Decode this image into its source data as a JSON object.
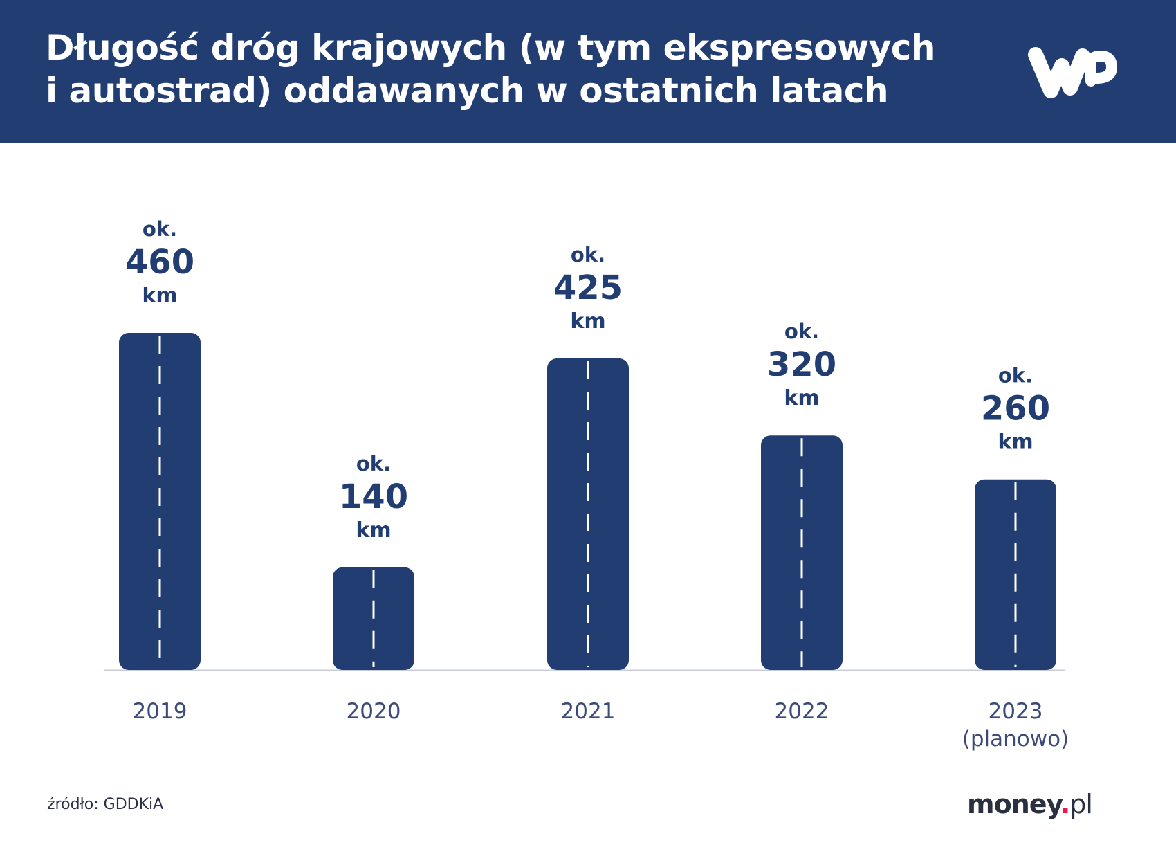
{
  "header": {
    "title": "Długość dróg krajowych (w tym ekspresowych\ni autostrad) oddawanych w ostatnich latach",
    "logo": "WP"
  },
  "colors": {
    "header": "#223d72",
    "bar": "#223d72",
    "dash": "#ffffff",
    "year_label": "#3b4a78"
  },
  "chart_data": {
    "type": "bar",
    "categories": [
      "2019",
      "2020",
      "2021",
      "2022",
      "2023\n(planowo)"
    ],
    "values": [
      460,
      140,
      425,
      320,
      260
    ],
    "value_prefix": "ok.",
    "unit": "km",
    "title": "Długość dróg krajowych (w tym ekspresowych i autostrad) oddawanych w ostatnich latach",
    "xlabel": "",
    "ylabel": "",
    "ylim": [
      0,
      460
    ],
    "grid": false
  },
  "footer": {
    "source": "źródło: GDDKiA",
    "brand_main": "money",
    "brand_dot": ".",
    "brand_tld": "pl"
  }
}
